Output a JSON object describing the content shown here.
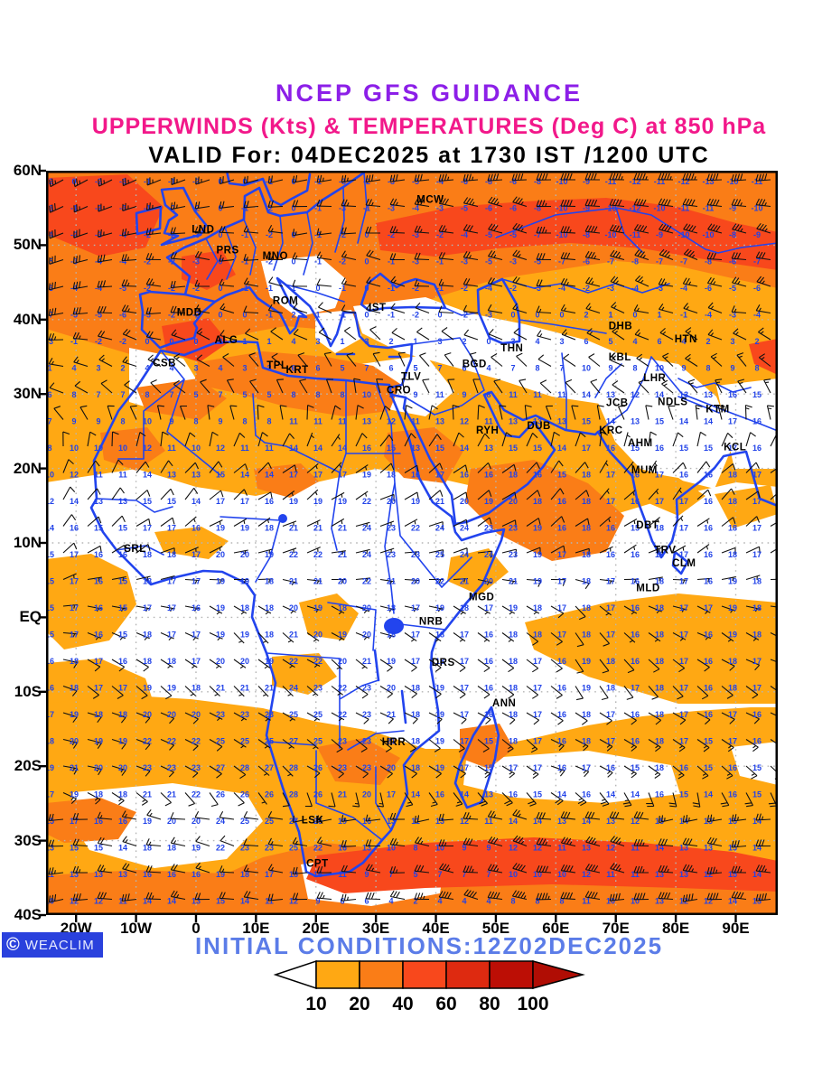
{
  "titles": {
    "line1": "NCEP GFS GUIDANCE",
    "line2": "UPPERWINDS (Kts) & TEMPERATURES (Deg C) at 850 hPa",
    "line3": "VALID For: 04DEC2025 at 1730 IST /1200 UTC"
  },
  "footer": {
    "initial_conditions": "INITIAL CONDITIONS:12Z02DEC2025"
  },
  "branding": {
    "logo_text": "WEACLIM",
    "logo_symbol": "©"
  },
  "colors": {
    "title1": "#8c1fe8",
    "title2": "#f2188a",
    "title3": "#000000",
    "geo_blue": "#2244ee",
    "temp_blue": "#2142e8",
    "barb_black": "#111111",
    "grid_gray": "#b5b5b5",
    "footer_blue": "#5b7ce8",
    "logo_bg": "#2a41dd",
    "shade10": "#ffa813",
    "shade20": "#fa7d17",
    "shade40": "#f8481c",
    "shade60": "#de2a10",
    "shade80": "#bc0e05",
    "arrow_end": "#b00d04"
  },
  "axes": {
    "lat_ticks": [
      {
        "label": "60N",
        "lat": 60
      },
      {
        "label": "50N",
        "lat": 50
      },
      {
        "label": "40N",
        "lat": 40
      },
      {
        "label": "30N",
        "lat": 30
      },
      {
        "label": "20N",
        "lat": 20
      },
      {
        "label": "10N",
        "lat": 10
      },
      {
        "label": "EQ",
        "lat": 0
      },
      {
        "label": "10S",
        "lat": -10
      },
      {
        "label": "20S",
        "lat": -20
      },
      {
        "label": "30S",
        "lat": -30
      },
      {
        "label": "40S",
        "lat": -40
      }
    ],
    "lon_ticks": [
      {
        "label": "20W",
        "lon": -20
      },
      {
        "label": "10W",
        "lon": -10
      },
      {
        "label": "0",
        "lon": 0
      },
      {
        "label": "10E",
        "lon": 10
      },
      {
        "label": "20E",
        "lon": 20
      },
      {
        "label": "30E",
        "lon": 30
      },
      {
        "label": "40E",
        "lon": 40
      },
      {
        "label": "50E",
        "lon": 50
      },
      {
        "label": "60E",
        "lon": 60
      },
      {
        "label": "70E",
        "lon": 70
      },
      {
        "label": "80E",
        "lon": 80
      },
      {
        "label": "90E",
        "lon": 90
      }
    ]
  },
  "colorbar": {
    "values": [
      "10",
      "20",
      "40",
      "60",
      "80",
      "100"
    ],
    "segment_colors": [
      "#ffa813",
      "#fa7d17",
      "#f8481c",
      "#de2a10",
      "#bc0e05"
    ],
    "left_arrow_color": "#ffffff",
    "right_arrow_color": "#b00d04"
  },
  "stations": [
    {
      "id": "MCW",
      "lon": 38.0,
      "lat": 56.2
    },
    {
      "id": "LND",
      "lon": 0.5,
      "lat": 52.2
    },
    {
      "id": "PRS",
      "lon": 4.6,
      "lat": 49.4
    },
    {
      "id": "MNO",
      "lon": 12.3,
      "lat": 48.6
    },
    {
      "id": "ROM",
      "lon": 14.0,
      "lat": 42.6
    },
    {
      "id": "IST",
      "lon": 30.0,
      "lat": 41.7
    },
    {
      "id": "MDD",
      "lon": -2.0,
      "lat": 41.0
    },
    {
      "id": "ALG",
      "lon": 4.3,
      "lat": 37.3
    },
    {
      "id": "CSB",
      "lon": -6.0,
      "lat": 34.2
    },
    {
      "id": "TPL",
      "lon": 13.0,
      "lat": 33.9
    },
    {
      "id": "KRT",
      "lon": 16.2,
      "lat": 33.3
    },
    {
      "id": "CRO",
      "lon": 33.0,
      "lat": 30.6
    },
    {
      "id": "TLV",
      "lon": 35.4,
      "lat": 32.4
    },
    {
      "id": "THN",
      "lon": 52.0,
      "lat": 36.2
    },
    {
      "id": "BGD",
      "lon": 45.6,
      "lat": 34.1
    },
    {
      "id": "DHB",
      "lon": 70.0,
      "lat": 39.2
    },
    {
      "id": "HTN",
      "lon": 81.0,
      "lat": 37.4
    },
    {
      "id": "KBL",
      "lon": 70.0,
      "lat": 35.0
    },
    {
      "id": "LHR",
      "lon": 75.8,
      "lat": 32.2
    },
    {
      "id": "NDLS",
      "lon": 78.2,
      "lat": 29.0
    },
    {
      "id": "KTM",
      "lon": 86.2,
      "lat": 28.0
    },
    {
      "id": "JCB",
      "lon": 69.6,
      "lat": 28.9
    },
    {
      "id": "KRC",
      "lon": 68.4,
      "lat": 25.2
    },
    {
      "id": "AHM",
      "lon": 73.2,
      "lat": 23.5
    },
    {
      "id": "KCL",
      "lon": 89.2,
      "lat": 22.9
    },
    {
      "id": "MUM",
      "lon": 73.8,
      "lat": 19.8
    },
    {
      "id": "RYH",
      "lon": 47.9,
      "lat": 25.2
    },
    {
      "id": "DUB",
      "lon": 56.4,
      "lat": 25.8
    },
    {
      "id": "DBT",
      "lon": 74.6,
      "lat": 12.4
    },
    {
      "id": "TRV",
      "lon": 77.6,
      "lat": 9.1
    },
    {
      "id": "CLM",
      "lon": 80.6,
      "lat": 7.3
    },
    {
      "id": "MLD",
      "lon": 74.6,
      "lat": 4.0
    },
    {
      "id": "SRL",
      "lon": -10.8,
      "lat": 9.3
    },
    {
      "id": "MGD",
      "lon": 46.7,
      "lat": 2.8
    },
    {
      "id": "NRB",
      "lon": 38.4,
      "lat": -0.5
    },
    {
      "id": "DRS",
      "lon": 40.5,
      "lat": -6.0
    },
    {
      "id": "ANN",
      "lon": 50.6,
      "lat": -11.5
    },
    {
      "id": "HRR",
      "lon": 32.2,
      "lat": -16.7
    },
    {
      "id": "LSK",
      "lon": 18.8,
      "lat": -27.2
    },
    {
      "id": "CPT",
      "lon": 19.6,
      "lat": -33.0
    }
  ],
  "field_samples": {
    "lons": [
      -20,
      -10,
      0,
      10,
      20,
      30,
      40,
      50,
      60,
      70,
      80,
      90
    ],
    "lats": [
      60,
      50,
      40,
      30,
      20,
      10,
      0,
      -10,
      -20,
      -30,
      -40
    ],
    "temperature_c": [
      [
        -1,
        -2,
        -1,
        0,
        -1,
        -3,
        -5,
        -7,
        -9,
        -11,
        -12,
        -12
      ],
      [
        -3,
        -3,
        -2,
        -1,
        -1,
        -1,
        -2,
        -4,
        -8,
        -10,
        -10,
        -8
      ],
      [
        -6,
        -5,
        -1,
        0,
        1,
        -1,
        -1,
        -2,
        1,
        2,
        1,
        -4
      ],
      [
        7,
        8,
        6,
        5,
        8,
        9,
        10,
        9,
        12,
        13,
        13,
        15
      ],
      [
        10,
        12,
        13,
        14,
        16,
        18,
        15,
        16,
        16,
        17,
        16,
        17
      ],
      [
        16,
        17,
        18,
        20,
        22,
        24,
        25,
        26,
        18,
        16,
        17,
        17
      ],
      [
        16,
        16,
        17,
        18,
        19,
        18,
        17,
        17,
        18,
        17,
        17,
        18
      ],
      [
        17,
        18,
        19,
        21,
        24,
        22,
        18,
        17,
        17,
        18,
        17,
        17
      ],
      [
        20,
        21,
        24,
        28,
        27,
        22,
        18,
        16,
        17,
        16,
        17,
        15
      ],
      [
        14,
        16,
        20,
        25,
        26,
        12,
        9,
        11,
        13,
        12,
        13,
        14
      ],
      [
        10,
        12,
        13,
        11,
        6,
        3,
        1,
        4,
        8,
        10,
        12,
        13
      ]
    ],
    "wind_speed_kt": [
      [
        25,
        25,
        25,
        20,
        25,
        30,
        35,
        40,
        40,
        45,
        45,
        40
      ],
      [
        30,
        25,
        20,
        15,
        15,
        20,
        25,
        30,
        35,
        40,
        40,
        35
      ],
      [
        30,
        25,
        15,
        10,
        10,
        10,
        10,
        10,
        15,
        15,
        15,
        15
      ],
      [
        10,
        10,
        10,
        10,
        10,
        10,
        10,
        10,
        10,
        10,
        15,
        15
      ],
      [
        10,
        10,
        10,
        10,
        5,
        10,
        10,
        10,
        10,
        5,
        10,
        10
      ],
      [
        10,
        10,
        5,
        5,
        5,
        5,
        10,
        10,
        10,
        5,
        5,
        10
      ],
      [
        5,
        5,
        5,
        5,
        5,
        5,
        5,
        5,
        10,
        5,
        5,
        5
      ],
      [
        10,
        10,
        5,
        5,
        5,
        10,
        10,
        10,
        10,
        10,
        10,
        10
      ],
      [
        15,
        10,
        10,
        5,
        10,
        10,
        10,
        15,
        15,
        15,
        15,
        15
      ],
      [
        20,
        15,
        10,
        10,
        15,
        20,
        25,
        30,
        35,
        35,
        30,
        30
      ],
      [
        35,
        30,
        25,
        20,
        25,
        30,
        40,
        45,
        45,
        40,
        40,
        40
      ]
    ],
    "wind_dir_from_deg": [
      [
        250,
        255,
        260,
        265,
        270,
        270,
        275,
        275,
        280,
        280,
        280,
        275
      ],
      [
        260,
        265,
        270,
        270,
        270,
        275,
        275,
        280,
        280,
        285,
        285,
        280
      ],
      [
        270,
        275,
        280,
        285,
        290,
        290,
        285,
        280,
        285,
        290,
        290,
        285
      ],
      [
        300,
        310,
        320,
        330,
        340,
        350,
        340,
        330,
        320,
        310,
        320,
        330
      ],
      [
        30,
        35,
        40,
        45,
        50,
        55,
        50,
        45,
        40,
        35,
        40,
        45
      ],
      [
        50,
        55,
        60,
        65,
        70,
        75,
        70,
        65,
        60,
        55,
        50,
        55
      ],
      [
        100,
        110,
        120,
        130,
        120,
        110,
        120,
        130,
        140,
        130,
        120,
        110
      ],
      [
        120,
        125,
        130,
        135,
        130,
        125,
        130,
        135,
        140,
        135,
        130,
        125
      ],
      [
        110,
        115,
        120,
        125,
        130,
        125,
        120,
        115,
        120,
        125,
        130,
        125
      ],
      [
        280,
        285,
        290,
        285,
        280,
        275,
        280,
        285,
        290,
        285,
        280,
        275
      ],
      [
        265,
        270,
        275,
        270,
        265,
        270,
        275,
        280,
        275,
        270,
        265,
        270
      ]
    ]
  }
}
